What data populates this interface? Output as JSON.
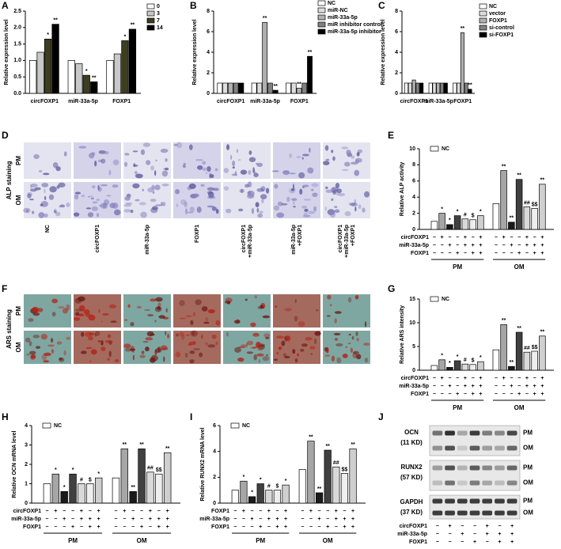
{
  "chart_data": [
    {
      "type": "bar",
      "panel": "A",
      "ylabel": "Relative expression level",
      "categories": [
        "circFOXP1",
        "miR-33a-5p",
        "FOXP1"
      ],
      "series": [
        {
          "name": "0",
          "color": "#ffffff",
          "values": [
            1.0,
            1.0,
            1.0
          ],
          "significance": [
            null,
            null,
            null
          ]
        },
        {
          "name": "3",
          "color": "#c8c8c8",
          "values": [
            1.25,
            0.9,
            1.2
          ],
          "significance": [
            null,
            null,
            null
          ]
        },
        {
          "name": "7",
          "color": "#3d3d20",
          "values": [
            1.65,
            0.55,
            1.6
          ],
          "significance": [
            "*",
            "*",
            "*"
          ]
        },
        {
          "name": "14",
          "color": "#000000",
          "values": [
            2.1,
            0.35,
            1.95
          ],
          "significance": [
            "**",
            "**",
            "**"
          ]
        }
      ],
      "ylim": [
        0,
        2.5
      ],
      "yticks": [
        {
          "value": 0,
          "label": "0.0"
        },
        0.5,
        {
          "value": 1,
          "label": "1.0"
        },
        1.5,
        {
          "value": 2,
          "label": "2.0"
        },
        2.5
      ]
    },
    {
      "type": "bar",
      "panel": "B",
      "ylabel": "Relative expression level",
      "categories": [
        "circFOXP1",
        "miR-33a-5p",
        "FOXP1"
      ],
      "series": [
        {
          "name": "NC",
          "color": "#ffffff",
          "values": [
            1.0,
            1.0,
            1.0
          ],
          "significance": [
            null,
            null,
            null
          ]
        },
        {
          "name": "miR-NC",
          "color": "#dddddd",
          "values": [
            1.0,
            1.0,
            1.0
          ],
          "significance": [
            null,
            null,
            null
          ]
        },
        {
          "name": "miR-33a-5p",
          "color": "#b0b0b0",
          "values": [
            1.0,
            6.9,
            0.5
          ],
          "significance": [
            null,
            "**",
            "**"
          ]
        },
        {
          "name": "miR inhibitor control",
          "color": "#808080",
          "values": [
            1.0,
            1.0,
            1.0
          ],
          "significance": [
            null,
            null,
            null
          ]
        },
        {
          "name": "miR-33a-5p inhibitor",
          "color": "#000000",
          "values": [
            1.0,
            0.3,
            3.6
          ],
          "significance": [
            null,
            "**",
            "**"
          ]
        }
      ],
      "ylim": [
        0,
        8
      ],
      "yticks": [
        0,
        2,
        4,
        6,
        8
      ]
    },
    {
      "type": "bar",
      "panel": "C",
      "ylabel": "Relative expression level",
      "categories": [
        "circFOXP1",
        "miR-33a-5p",
        "FOXP1"
      ],
      "series": [
        {
          "name": "NC",
          "color": "#ffffff",
          "values": [
            1.0,
            1.0,
            1.0
          ],
          "significance": [
            null,
            null,
            null
          ]
        },
        {
          "name": "vector",
          "color": "#dddddd",
          "values": [
            1.0,
            1.0,
            1.0
          ],
          "significance": [
            null,
            null,
            null
          ]
        },
        {
          "name": "FOXP1",
          "color": "#b0b0b0",
          "values": [
            1.3,
            1.0,
            5.9
          ],
          "significance": [
            null,
            null,
            "**"
          ]
        },
        {
          "name": "si-control",
          "color": "#808080",
          "values": [
            1.0,
            1.0,
            1.0
          ],
          "significance": [
            null,
            null,
            null
          ]
        },
        {
          "name": "si-FOXP1",
          "color": "#000000",
          "values": [
            1.0,
            1.0,
            0.4
          ],
          "significance": [
            null,
            null,
            "**"
          ]
        }
      ],
      "ylim": [
        0,
        8
      ],
      "yticks": [
        0,
        2,
        4,
        6,
        8
      ]
    },
    {
      "type": "column",
      "panel": "E",
      "ylabel": "Relative ALP activity",
      "legend": "NC",
      "values": [
        1.0,
        2.0,
        0.6,
        1.7,
        1.3,
        1.2,
        1.7,
        3.2,
        7.3,
        0.9,
        6.2,
        2.8,
        2.6,
        5.6
      ],
      "significance": [
        null,
        "*",
        "*",
        "*",
        "#",
        "$",
        "*",
        null,
        "**",
        "**",
        "**",
        "##",
        "$$",
        "**"
      ],
      "colors": [
        "#ffffff",
        "#a6a6a6",
        "#1a1a1a",
        "#404040",
        "#d9d9d9",
        "#eeeeee",
        "#cfcfcf",
        "#ffffff",
        "#a6a6a6",
        "#1a1a1a",
        "#404040",
        "#d9d9d9",
        "#eeeeee",
        "#cfcfcf"
      ],
      "ylim": [
        0,
        10
      ],
      "yticks": [
        0,
        2,
        4,
        6,
        8,
        10
      ],
      "table": {
        "row_labels": [
          "circFOXP1",
          "miR-33a-5p",
          "FOXP1"
        ],
        "rows": [
          [
            "−",
            "+",
            "−",
            "−",
            "+",
            "−",
            "+",
            "−",
            "+",
            "−",
            "−",
            "+",
            "−",
            "+"
          ],
          [
            "−",
            "−",
            "+",
            "−",
            "+",
            "+",
            "+",
            "−",
            "−",
            "+",
            "−",
            "+",
            "+",
            "+"
          ],
          [
            "−",
            "−",
            "−",
            "+",
            "−",
            "+",
            "+",
            "−",
            "−",
            "−",
            "+",
            "−",
            "+",
            "+"
          ]
        ]
      },
      "groups": [
        "PM",
        "OM"
      ]
    },
    {
      "type": "column",
      "panel": "G",
      "ylabel": "Relative ARS intensity",
      "legend": "NC",
      "values": [
        1.0,
        2.2,
        0.6,
        2.0,
        1.3,
        1.2,
        1.8,
        4.3,
        9.6,
        0.8,
        8.0,
        3.8,
        4.0,
        7.2
      ],
      "significance": [
        null,
        "*",
        "*",
        "*",
        "#",
        "$",
        "*",
        null,
        "**",
        "**",
        "**",
        "##",
        "$$",
        "**"
      ],
      "colors": [
        "#ffffff",
        "#a6a6a6",
        "#1a1a1a",
        "#404040",
        "#d9d9d9",
        "#eeeeee",
        "#cfcfcf",
        "#ffffff",
        "#a6a6a6",
        "#1a1a1a",
        "#404040",
        "#d9d9d9",
        "#eeeeee",
        "#cfcfcf"
      ],
      "ylim": [
        0,
        15
      ],
      "yticks": [
        0,
        5,
        10,
        15
      ],
      "table": {
        "row_labels": [
          "circFOXP1",
          "miR-33a-5p",
          "FOXP1"
        ],
        "rows": [
          [
            "−",
            "+",
            "−",
            "−",
            "+",
            "−",
            "+",
            "−",
            "+",
            "−",
            "−",
            "+",
            "−",
            "+"
          ],
          [
            "−",
            "−",
            "+",
            "−",
            "+",
            "+",
            "+",
            "−",
            "−",
            "+",
            "−",
            "+",
            "+",
            "+"
          ],
          [
            "−",
            "−",
            "−",
            "+",
            "−",
            "+",
            "+",
            "−",
            "−",
            "−",
            "+",
            "−",
            "+",
            "+"
          ]
        ]
      },
      "groups": [
        "PM",
        "OM"
      ]
    },
    {
      "type": "column",
      "panel": "H",
      "ylabel": "Relative OCN mRNA level",
      "legend": "NC",
      "values": [
        1.0,
        1.5,
        0.6,
        1.5,
        1.0,
        1.0,
        1.3,
        1.3,
        2.8,
        0.6,
        2.8,
        1.6,
        1.5,
        2.6
      ],
      "significance": [
        null,
        "*",
        "*",
        "*",
        "#",
        "$",
        "*",
        null,
        "**",
        "**",
        "**",
        "##",
        "$$",
        "**"
      ],
      "colors": [
        "#ffffff",
        "#a6a6a6",
        "#1a1a1a",
        "#404040",
        "#d9d9d9",
        "#eeeeee",
        "#cfcfcf",
        "#ffffff",
        "#a6a6a6",
        "#1a1a1a",
        "#404040",
        "#d9d9d9",
        "#eeeeee",
        "#cfcfcf"
      ],
      "ylim": [
        0,
        4
      ],
      "yticks": [
        0,
        1,
        2,
        3,
        4
      ],
      "table": {
        "row_labels": [
          "circFOXP1",
          "miR-33a-5p",
          "FOXP1"
        ],
        "rows": [
          [
            "−",
            "+",
            "−",
            "−",
            "+",
            "−",
            "+",
            "−",
            "+",
            "−",
            "−",
            "+",
            "−",
            "+"
          ],
          [
            "−",
            "−",
            "+",
            "−",
            "+",
            "+",
            "+",
            "−",
            "−",
            "+",
            "−",
            "+",
            "+",
            "+"
          ],
          [
            "−",
            "−",
            "−",
            "+",
            "−",
            "+",
            "+",
            "−",
            "−",
            "−",
            "+",
            "−",
            "+",
            "+"
          ]
        ]
      },
      "groups": [
        "PM",
        "OM"
      ]
    },
    {
      "type": "column",
      "panel": "I",
      "ylabel": "Relative RUNX2 mRNA level",
      "legend": "NC",
      "values": [
        1.0,
        1.7,
        0.5,
        1.5,
        1.0,
        1.0,
        1.4,
        2.6,
        4.8,
        0.8,
        4.1,
        2.8,
        2.3,
        4.2
      ],
      "significance": [
        null,
        "*",
        "*",
        "*",
        "#",
        "$",
        "*",
        null,
        "**",
        "**",
        "**",
        "##",
        "$$",
        "**"
      ],
      "colors": [
        "#ffffff",
        "#a6a6a6",
        "#1a1a1a",
        "#404040",
        "#d9d9d9",
        "#eeeeee",
        "#cfcfcf",
        "#ffffff",
        "#a6a6a6",
        "#1a1a1a",
        "#404040",
        "#d9d9d9",
        "#eeeeee",
        "#cfcfcf"
      ],
      "ylim": [
        0,
        6
      ],
      "yticks": [
        0,
        2,
        4,
        6
      ],
      "table": {
        "row_labels": [
          "FOXP1",
          "miR-33a-5p",
          "FOXP1"
        ],
        "rows": [
          [
            "−",
            "+",
            "−",
            "−",
            "+",
            "−",
            "+",
            "−",
            "+",
            "−",
            "−",
            "+",
            "−",
            "+"
          ],
          [
            "−",
            "−",
            "+",
            "−",
            "+",
            "+",
            "+",
            "−",
            "−",
            "+",
            "−",
            "+",
            "+",
            "+"
          ],
          [
            "−",
            "−",
            "−",
            "+",
            "−",
            "+",
            "+",
            "−",
            "−",
            "−",
            "+",
            "−",
            "+",
            "+"
          ]
        ]
      },
      "groups": [
        "PM",
        "OM"
      ]
    }
  ],
  "stain_panels": [
    {
      "panel": "D",
      "stain": "ALP staining",
      "rows": [
        "PM",
        "OM"
      ],
      "columns": [
        [
          "NC"
        ],
        [
          "circFOXP1"
        ],
        [
          "miR-33a-5p"
        ],
        [
          "FOXP1"
        ],
        [
          "circFOXP1",
          "+miR-33a-5p"
        ],
        [
          "miR-33a-5p",
          "+FOXP1"
        ],
        [
          "circFOXP1",
          "+miR-33a-5p",
          "+FOXP1"
        ]
      ]
    },
    {
      "panel": "F",
      "stain": "ARS staining",
      "rows": [
        "PM",
        "OM"
      ]
    }
  ],
  "blot": {
    "panel": "J",
    "proteins": [
      {
        "name": "OCN",
        "size": "(11 KD)"
      },
      {
        "name": "RUNX2",
        "size": "(57 KD)"
      },
      {
        "name": "GAPDH",
        "size": "(37 KD)"
      }
    ],
    "conditions": [
      "PM",
      "OM"
    ],
    "table": {
      "row_labels": [
        "circFOXP1",
        "miR-33a-5p",
        "FOXP1"
      ],
      "rows": [
        [
          "−",
          "+",
          "−",
          "−",
          "+",
          "−",
          "+"
        ],
        [
          "−",
          "−",
          "+",
          "−",
          "+",
          "+",
          "+"
        ],
        [
          "−",
          "−",
          "−",
          "+",
          "−",
          "+",
          "+"
        ]
      ]
    }
  }
}
